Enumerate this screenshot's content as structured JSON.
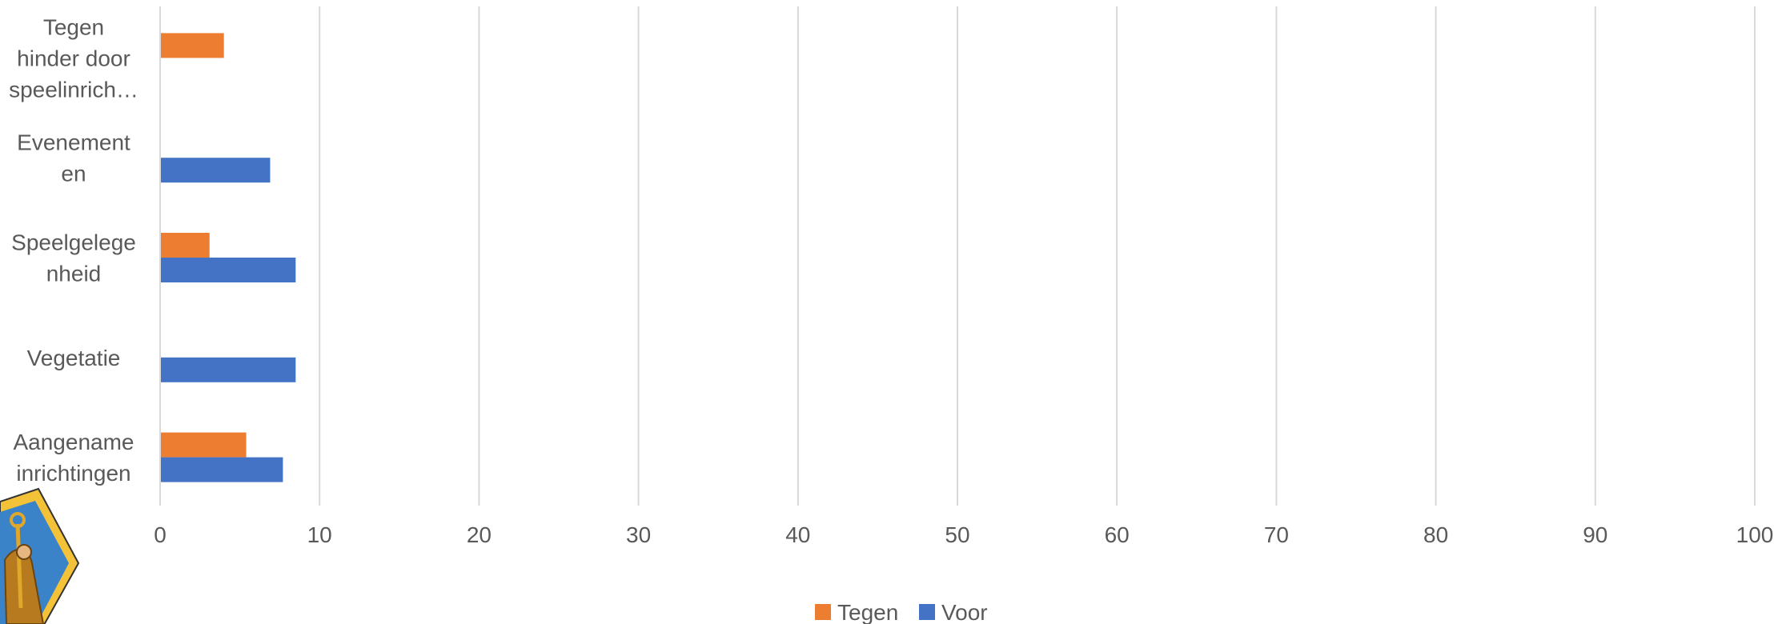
{
  "chart_data": {
    "type": "bar",
    "orientation": "horizontal",
    "categories": [
      [
        "Tegen",
        "hinder door",
        "speelinrich…"
      ],
      [
        "Evenement",
        "en"
      ],
      [
        "Speelgelege",
        "nheid"
      ],
      [
        "Vegetatie"
      ],
      [
        "Aangename",
        "inrichtingen"
      ]
    ],
    "series": [
      {
        "name": "Tegen",
        "color": "#ED7D31",
        "values": [
          4,
          0,
          3.1,
          0,
          5.4
        ]
      },
      {
        "name": "Voor",
        "color": "#4472C4",
        "values": [
          0,
          6.9,
          8.5,
          8.5,
          7.7
        ]
      }
    ],
    "xlim": [
      0,
      100
    ],
    "xticks": [
      "0",
      "10",
      "20",
      "30",
      "40",
      "50",
      "60",
      "70",
      "80",
      "90",
      "100"
    ],
    "grid": true,
    "legend_position": "bottom"
  },
  "decoration": {
    "logo_icon": "coat-of-arms-icon"
  }
}
